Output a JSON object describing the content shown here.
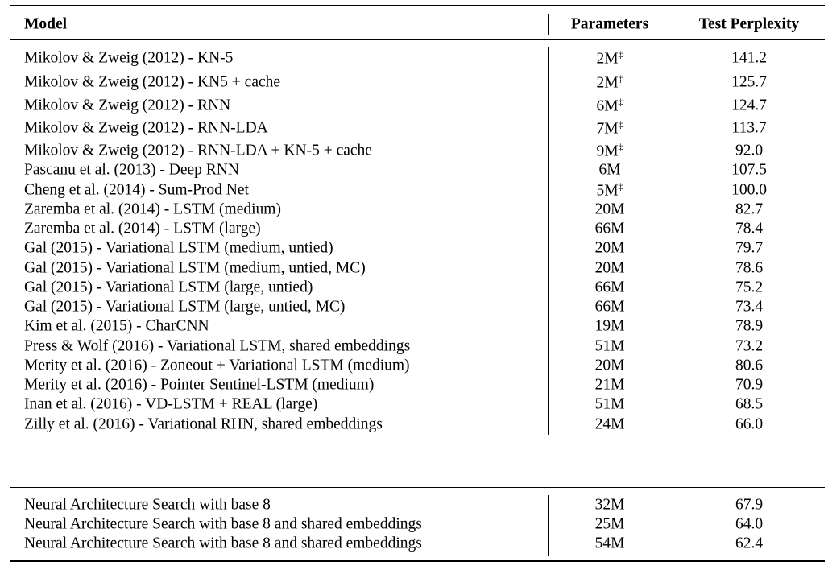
{
  "table": {
    "header": [
      "Model",
      "Parameters",
      "Test Perplexity"
    ],
    "groups": [
      [
        {
          "model": "Mikolov & Zweig (2012) - KN-5",
          "parameters": "2M",
          "mark": "‡",
          "perplexity": "141.2"
        },
        {
          "model": "Mikolov & Zweig (2012) - KN5 + cache",
          "parameters": "2M",
          "mark": "‡",
          "perplexity": "125.7"
        },
        {
          "model": "Mikolov & Zweig (2012) - RNN",
          "parameters": "6M",
          "mark": "‡",
          "perplexity": "124.7"
        },
        {
          "model": "Mikolov & Zweig (2012) - RNN-LDA",
          "parameters": "7M",
          "mark": "‡",
          "perplexity": "113.7"
        },
        {
          "model": "Mikolov & Zweig (2012) - RNN-LDA + KN-5 + cache",
          "parameters": "9M",
          "mark": "‡",
          "perplexity": "92.0"
        },
        {
          "model": "Pascanu et al. (2013) - Deep RNN",
          "parameters": "6M",
          "perplexity": "107.5"
        },
        {
          "model": "Cheng et al. (2014) - Sum-Prod Net",
          "parameters": "5M",
          "mark": "‡",
          "perplexity": "100.0"
        },
        {
          "model": "Zaremba et al. (2014) - LSTM (medium)",
          "parameters": "20M",
          "perplexity": "82.7"
        },
        {
          "model": "Zaremba et al. (2014) - LSTM (large)",
          "parameters": "66M",
          "perplexity": "78.4"
        },
        {
          "model": "Gal (2015) - Variational LSTM (medium, untied)",
          "parameters": "20M",
          "perplexity": "79.7"
        },
        {
          "model": "Gal (2015) - Variational LSTM (medium, untied, MC)",
          "parameters": "20M",
          "perplexity": "78.6"
        },
        {
          "model": "Gal (2015) - Variational LSTM (large, untied)",
          "parameters": "66M",
          "perplexity": "75.2"
        },
        {
          "model": "Gal (2015) - Variational LSTM (large, untied, MC)",
          "parameters": "66M",
          "perplexity": "73.4"
        },
        {
          "model": "Kim et al. (2015) - CharCNN",
          "parameters": "19M",
          "perplexity": "78.9"
        },
        {
          "model": "Press & Wolf (2016) - Variational LSTM, shared embeddings",
          "parameters": "51M",
          "perplexity": "73.2"
        },
        {
          "model": "Merity et al. (2016) - Zoneout + Variational LSTM (medium)",
          "parameters": "20M",
          "perplexity": "80.6"
        },
        {
          "model": "Merity et al. (2016) - Pointer Sentinel-LSTM (medium)",
          "parameters": "21M",
          "perplexity": "70.9"
        },
        {
          "model": "Inan et al. (2016) - VD-LSTM + REAL (large)",
          "parameters": "51M",
          "perplexity": "68.5"
        },
        {
          "model": "Zilly et al. (2016) - Variational RHN, shared embeddings",
          "parameters": "24M",
          "perplexity": "66.0"
        }
      ],
      [
        {
          "model": "Neural Architecture Search with base 8",
          "parameters": "32M",
          "perplexity": "67.9"
        },
        {
          "model": "Neural Architecture Search with base 8 and shared embeddings",
          "parameters": "25M",
          "perplexity": "64.0"
        },
        {
          "model": "Neural Architecture Search with base 8 and shared embeddings",
          "parameters": "54M",
          "perplexity": "62.4"
        }
      ]
    ]
  }
}
